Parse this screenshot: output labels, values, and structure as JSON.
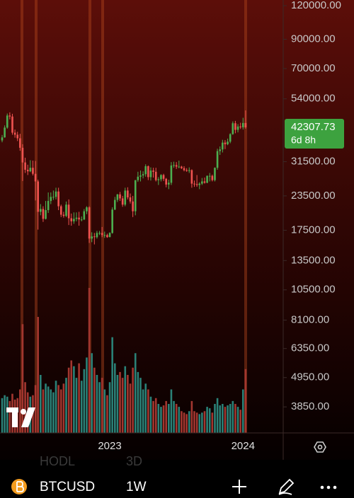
{
  "chart_data": {
    "type": "candlestick",
    "log_scale": true,
    "ylim": [
      3080,
      126000
    ],
    "yticks": [
      {
        "value": 3850,
        "label": "3850.00"
      },
      {
        "value": 4950,
        "label": "4950.00"
      },
      {
        "value": 6350,
        "label": "6350.00"
      },
      {
        "value": 8100,
        "label": "8100.00"
      },
      {
        "value": 10500,
        "label": "10500.00"
      },
      {
        "value": 13500,
        "label": "13500.00"
      },
      {
        "value": 17500,
        "label": "17500.00"
      },
      {
        "value": 23500,
        "label": "23500.00"
      },
      {
        "value": 31500,
        "label": "31500.00"
      },
      {
        "value": 54000,
        "label": "54000.00"
      },
      {
        "value": 70000,
        "label": "70000.00"
      },
      {
        "value": 90000,
        "label": "90000.00"
      },
      {
        "value": 120000,
        "label": "120000.00"
      }
    ],
    "up_color": "#4caf50",
    "down_color": "#ef5350",
    "volume_up_color": "#2a8177",
    "volume_down_color": "#a3362f",
    "countdown": "6d 8h",
    "categories": [
      null,
      null,
      null,
      null,
      null,
      null,
      null,
      null,
      null,
      null,
      null,
      null,
      null,
      null,
      null,
      null,
      null,
      null,
      null,
      null,
      null,
      null,
      null,
      null,
      null,
      null,
      null,
      null,
      null,
      null,
      null,
      null,
      null,
      null,
      null,
      null,
      null,
      null,
      null,
      null,
      null,
      null,
      "2023",
      null,
      null,
      null,
      null,
      null,
      null,
      null,
      null,
      null,
      null,
      null,
      null,
      null,
      null,
      null,
      null,
      null,
      null,
      null,
      null,
      null,
      null,
      null,
      null,
      null,
      null,
      null,
      null,
      null,
      null,
      null,
      null,
      null,
      null,
      null,
      null,
      null,
      null,
      null,
      null,
      null,
      null,
      null,
      null,
      null,
      null,
      null,
      null,
      null,
      null,
      null,
      "2024",
      null
    ],
    "open": [
      37800,
      38800,
      42200,
      46800,
      46400,
      40400,
      39700,
      38500,
      35500,
      31300,
      29400,
      29000,
      29900,
      28400,
      26600,
      20500,
      21000,
      19300,
      20800,
      22500,
      23300,
      23300,
      24400,
      21500,
      20000,
      19800,
      21800,
      19400,
      18900,
      19300,
      19500,
      19200,
      19200,
      20600,
      21300,
      16300,
      16600,
      16500,
      17100,
      17100,
      16800,
      16800,
      16500,
      17100,
      20900,
      22700,
      23800,
      23000,
      21800,
      24600,
      23200,
      22400,
      20600,
      26900,
      27700,
      28000,
      28300,
      30300,
      27600,
      29200,
      28900,
      26900,
      27100,
      28100,
      27200,
      25900,
      26300,
      30500,
      30600,
      30200,
      30200,
      29800,
      29300,
      29100,
      29300,
      26100,
      26000,
      25800,
      26100,
      26600,
      26300,
      27900,
      27900,
      26900,
      29900,
      34500,
      35000,
      37100,
      36600,
      37400,
      39900,
      43800,
      41400,
      42600,
      42300,
      43900
    ],
    "high": [
      39600,
      43000,
      47600,
      48100,
      47500,
      41500,
      40700,
      40000,
      36600,
      32600,
      30700,
      31900,
      31800,
      31700,
      27000,
      21900,
      21500,
      22500,
      24200,
      24200,
      24600,
      25200,
      25200,
      21800,
      20500,
      22400,
      22800,
      20200,
      20400,
      20400,
      20500,
      19700,
      21000,
      21500,
      21500,
      17200,
      17100,
      17400,
      17400,
      18000,
      17300,
      17000,
      17200,
      21300,
      23300,
      23900,
      24300,
      23500,
      25200,
      25300,
      24000,
      23500,
      26900,
      28900,
      29200,
      29000,
      30800,
      30500,
      30000,
      29900,
      29900,
      27600,
      28300,
      28400,
      27400,
      27000,
      31400,
      31500,
      31400,
      31800,
      30400,
      30300,
      29800,
      30000,
      29500,
      26800,
      28100,
      26400,
      27400,
      27500,
      28000,
      28600,
      28200,
      30000,
      35200,
      35900,
      38000,
      37900,
      38400,
      40200,
      44500,
      44700,
      43500,
      44000,
      45900,
      48900
    ],
    "low": [
      37200,
      38700,
      41800,
      45300,
      39700,
      38700,
      37600,
      34600,
      26700,
      28600,
      28100,
      28800,
      28000,
      22600,
      17600,
      19900,
      18800,
      19200,
      20300,
      21900,
      22700,
      22800,
      20800,
      19600,
      19500,
      19600,
      18300,
      18200,
      18500,
      18900,
      18200,
      18900,
      19100,
      20100,
      15700,
      15800,
      15500,
      16300,
      16800,
      16500,
      16400,
      16400,
      16500,
      17000,
      20800,
      22300,
      22500,
      21400,
      21500,
      22800,
      22000,
      19600,
      19900,
      26500,
      26600,
      27300,
      27700,
      26900,
      26800,
      27500,
      26600,
      25800,
      26600,
      26700,
      25300,
      24900,
      25800,
      29900,
      29600,
      29800,
      29600,
      29000,
      28900,
      28600,
      25200,
      25400,
      25400,
      24900,
      25800,
      26100,
      26200,
      26600,
      26600,
      26600,
      29400,
      33400,
      34100,
      35100,
      36300,
      36900,
      39700,
      40200,
      40500,
      41700,
      41500,
      41800
    ],
    "close": [
      38800,
      42200,
      46800,
      46400,
      40400,
      39700,
      38500,
      35500,
      31300,
      29400,
      29000,
      29900,
      28400,
      26600,
      20500,
      21000,
      19300,
      20800,
      22500,
      23300,
      23300,
      24400,
      21500,
      20000,
      19800,
      21800,
      19400,
      18900,
      19300,
      19500,
      19200,
      19200,
      20600,
      21300,
      16300,
      16600,
      16500,
      17100,
      17100,
      16800,
      16800,
      16500,
      17100,
      20900,
      22700,
      23800,
      23000,
      21800,
      24600,
      23200,
      22400,
      20600,
      26900,
      27700,
      28000,
      28300,
      30300,
      27600,
      29200,
      28900,
      26900,
      27100,
      28100,
      27200,
      25900,
      26300,
      30500,
      30600,
      30200,
      30200,
      29800,
      29300,
      29100,
      29300,
      26100,
      26000,
      25800,
      26100,
      26600,
      26300,
      27900,
      27900,
      26900,
      29900,
      34500,
      35000,
      37100,
      36600,
      37400,
      39900,
      43800,
      41400,
      42600,
      42300,
      43900,
      42307.73
    ],
    "volume": [
      24,
      26,
      25,
      22,
      27,
      23,
      24,
      30,
      75,
      35,
      28,
      25,
      26,
      33,
      80,
      40,
      30,
      34,
      32,
      30,
      28,
      36,
      33,
      30,
      34,
      38,
      45,
      50,
      46,
      38,
      48,
      36,
      44,
      52,
      100,
      55,
      45,
      40,
      35,
      38,
      30,
      26,
      35,
      66,
      48,
      40,
      42,
      38,
      46,
      40,
      34,
      45,
      55,
      42,
      38,
      30,
      34,
      30,
      25,
      22,
      24,
      20,
      18,
      19,
      22,
      20,
      30,
      22,
      20,
      18,
      15,
      14,
      13,
      15,
      22,
      15,
      14,
      13,
      14,
      15,
      18,
      17,
      14,
      20,
      24,
      19,
      20,
      18,
      19,
      20,
      22,
      20,
      18,
      16,
      30,
      44
    ]
  },
  "toolbar": {
    "faded_tabs": [
      "HODL",
      "3D"
    ],
    "symbol": "BTCUSD",
    "interval": "1W"
  }
}
